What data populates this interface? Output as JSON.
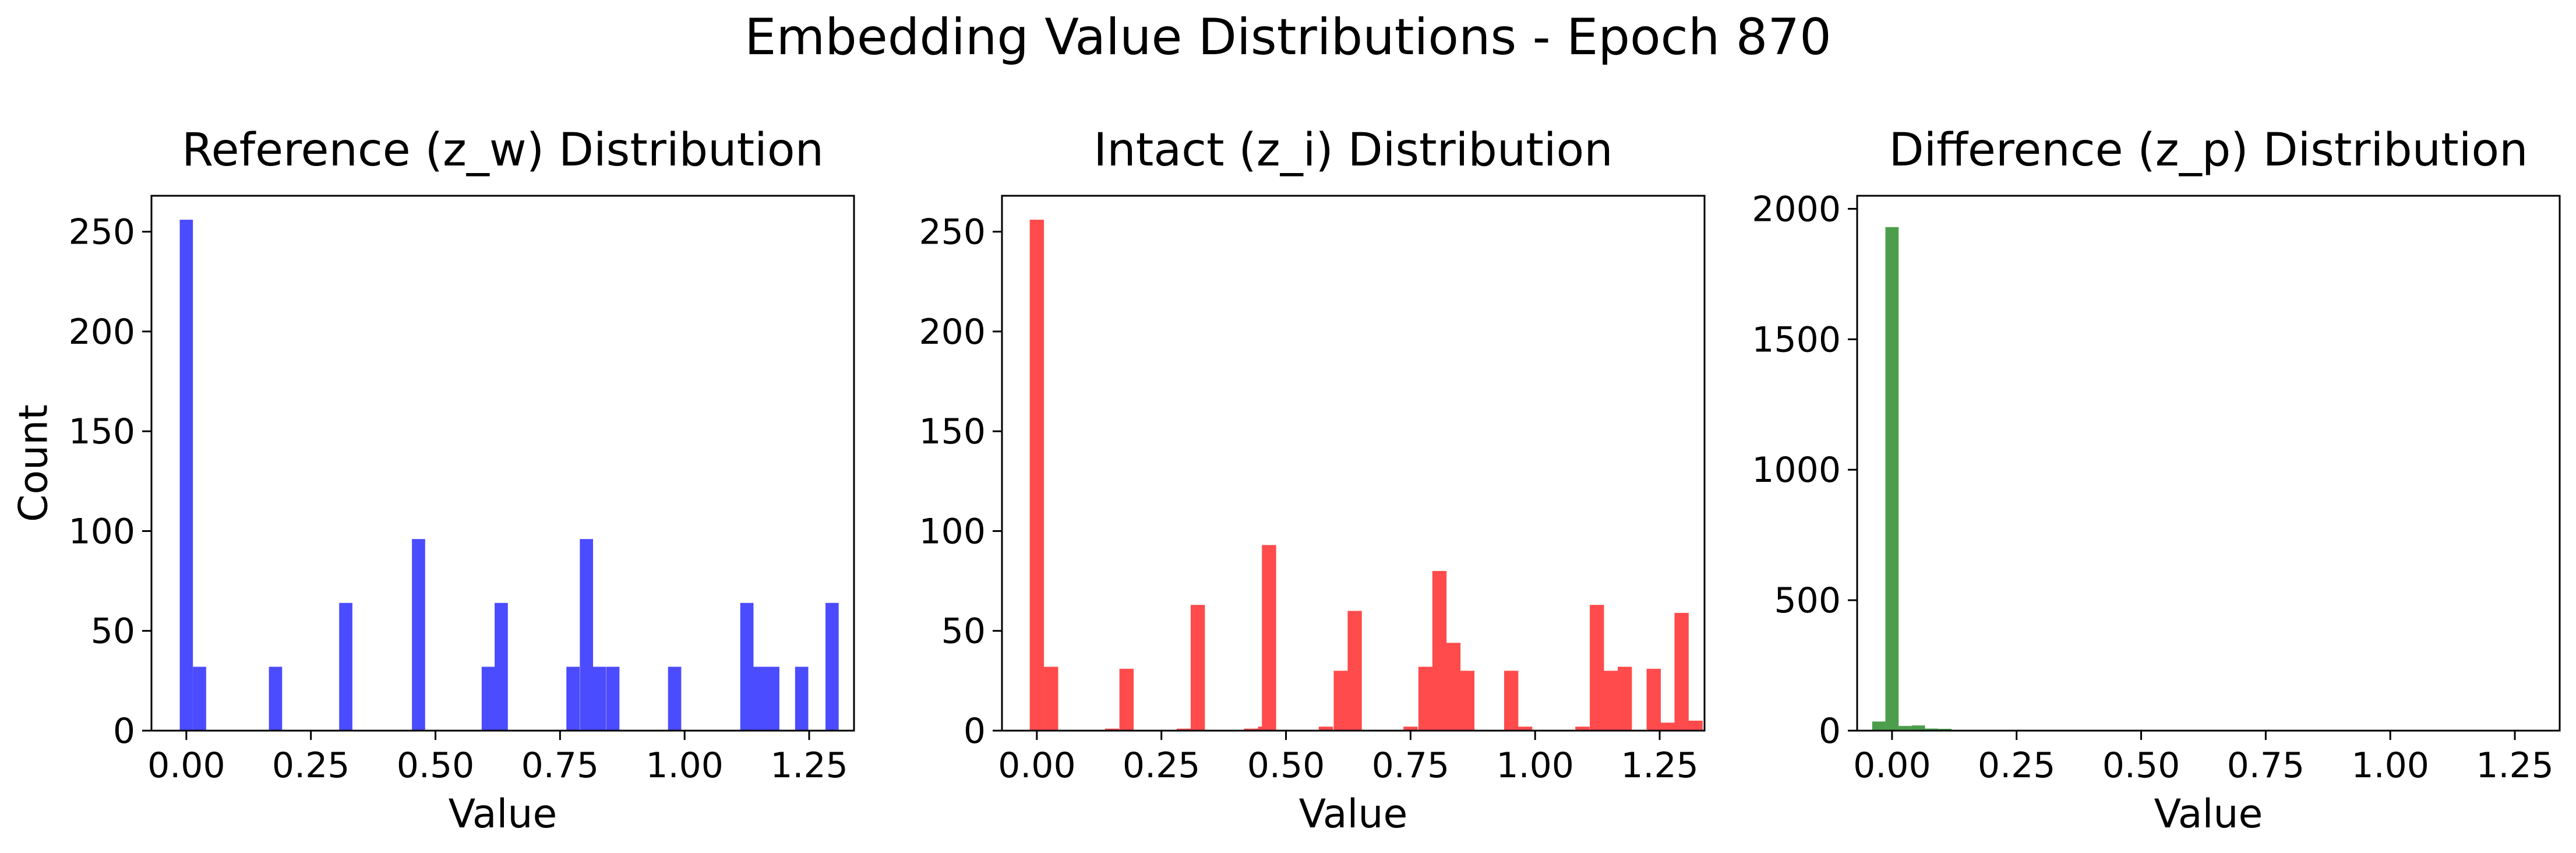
{
  "suptitle": "Embedding Value Distributions - Epoch 870",
  "chart_data": [
    {
      "type": "bar",
      "title": "Reference (z_w) Distribution",
      "xlabel": "Value",
      "ylabel": "Count",
      "color": "#4b4bff",
      "xlim": [
        -0.07,
        1.34
      ],
      "ylim": [
        0,
        268
      ],
      "bin_width": 0.0265,
      "xticks": [
        0.0,
        0.25,
        0.5,
        0.75,
        1.0,
        1.25
      ],
      "xtick_labels": [
        "0.00",
        "0.25",
        "0.50",
        "0.75",
        "1.00",
        "1.25"
      ],
      "yticks": [
        0,
        50,
        100,
        150,
        200,
        250
      ],
      "ytick_labels": [
        "0",
        "50",
        "100",
        "150",
        "200",
        "250"
      ],
      "bins": [
        {
          "x": 0.0,
          "count": 256
        },
        {
          "x": 0.0265,
          "count": 32
        },
        {
          "x": 0.179,
          "count": 32
        },
        {
          "x": 0.32,
          "count": 64
        },
        {
          "x": 0.466,
          "count": 96
        },
        {
          "x": 0.606,
          "count": 32
        },
        {
          "x": 0.632,
          "count": 64
        },
        {
          "x": 0.776,
          "count": 32
        },
        {
          "x": 0.803,
          "count": 96
        },
        {
          "x": 0.829,
          "count": 32
        },
        {
          "x": 0.856,
          "count": 32
        },
        {
          "x": 0.98,
          "count": 32
        },
        {
          "x": 1.125,
          "count": 64
        },
        {
          "x": 1.151,
          "count": 32
        },
        {
          "x": 1.177,
          "count": 32
        },
        {
          "x": 1.235,
          "count": 32
        },
        {
          "x": 1.296,
          "count": 64
        }
      ]
    },
    {
      "type": "bar",
      "title": "Intact (z_i) Distribution",
      "xlabel": "Value",
      "ylabel": "",
      "color": "#ff4b4b",
      "xlim": [
        -0.07,
        1.34
      ],
      "ylim": [
        0,
        268
      ],
      "bin_width": 0.0285,
      "xticks": [
        0.0,
        0.25,
        0.5,
        0.75,
        1.0,
        1.25
      ],
      "xtick_labels": [
        "0.00",
        "0.25",
        "0.50",
        "0.75",
        "1.00",
        "1.25"
      ],
      "yticks": [
        0,
        50,
        100,
        150,
        200,
        250
      ],
      "ytick_labels": [
        "0",
        "50",
        "100",
        "150",
        "200",
        "250"
      ],
      "bins": [
        {
          "x": 0.0,
          "count": 256
        },
        {
          "x": 0.0285,
          "count": 32
        },
        {
          "x": 0.151,
          "count": 1
        },
        {
          "x": 0.18,
          "count": 31
        },
        {
          "x": 0.295,
          "count": 1
        },
        {
          "x": 0.323,
          "count": 63
        },
        {
          "x": 0.43,
          "count": 1
        },
        {
          "x": 0.458,
          "count": 2
        },
        {
          "x": 0.466,
          "count": 93
        },
        {
          "x": 0.58,
          "count": 2
        },
        {
          "x": 0.61,
          "count": 30
        },
        {
          "x": 0.638,
          "count": 60
        },
        {
          "x": 0.75,
          "count": 2
        },
        {
          "x": 0.78,
          "count": 32
        },
        {
          "x": 0.808,
          "count": 80
        },
        {
          "x": 0.836,
          "count": 44
        },
        {
          "x": 0.864,
          "count": 30
        },
        {
          "x": 0.952,
          "count": 30
        },
        {
          "x": 0.98,
          "count": 2
        },
        {
          "x": 1.095,
          "count": 2
        },
        {
          "x": 1.124,
          "count": 63
        },
        {
          "x": 1.152,
          "count": 30
        },
        {
          "x": 1.18,
          "count": 32
        },
        {
          "x": 1.238,
          "count": 31
        },
        {
          "x": 1.266,
          "count": 4
        },
        {
          "x": 1.294,
          "count": 59
        },
        {
          "x": 1.322,
          "count": 5
        }
      ]
    },
    {
      "type": "bar",
      "title": "Difference (z_p) Distribution",
      "xlabel": "Value",
      "ylabel": "",
      "color": "#4c9e4c",
      "xlim": [
        -0.07,
        1.34
      ],
      "ylim": [
        0,
        2050
      ],
      "bin_width": 0.0265,
      "xticks": [
        0.0,
        0.25,
        0.5,
        0.75,
        1.0,
        1.25
      ],
      "xtick_labels": [
        "0.00",
        "0.25",
        "0.50",
        "0.75",
        "1.00",
        "1.25"
      ],
      "yticks": [
        0,
        500,
        1000,
        1500,
        2000
      ],
      "ytick_labels": [
        "0",
        "500",
        "1000",
        "1500",
        "2000"
      ],
      "bins": [
        {
          "x": -0.053,
          "count": 3
        },
        {
          "x": -0.0265,
          "count": 35
        },
        {
          "x": 0.0,
          "count": 1930
        },
        {
          "x": 0.0265,
          "count": 18
        },
        {
          "x": 0.053,
          "count": 20
        },
        {
          "x": 0.0795,
          "count": 8
        },
        {
          "x": 0.106,
          "count": 7
        },
        {
          "x": 0.1325,
          "count": 3
        },
        {
          "x": 0.159,
          "count": 2
        },
        {
          "x": 0.1855,
          "count": 2
        },
        {
          "x": 0.212,
          "count": 1
        },
        {
          "x": 0.2385,
          "count": 1
        }
      ]
    }
  ]
}
